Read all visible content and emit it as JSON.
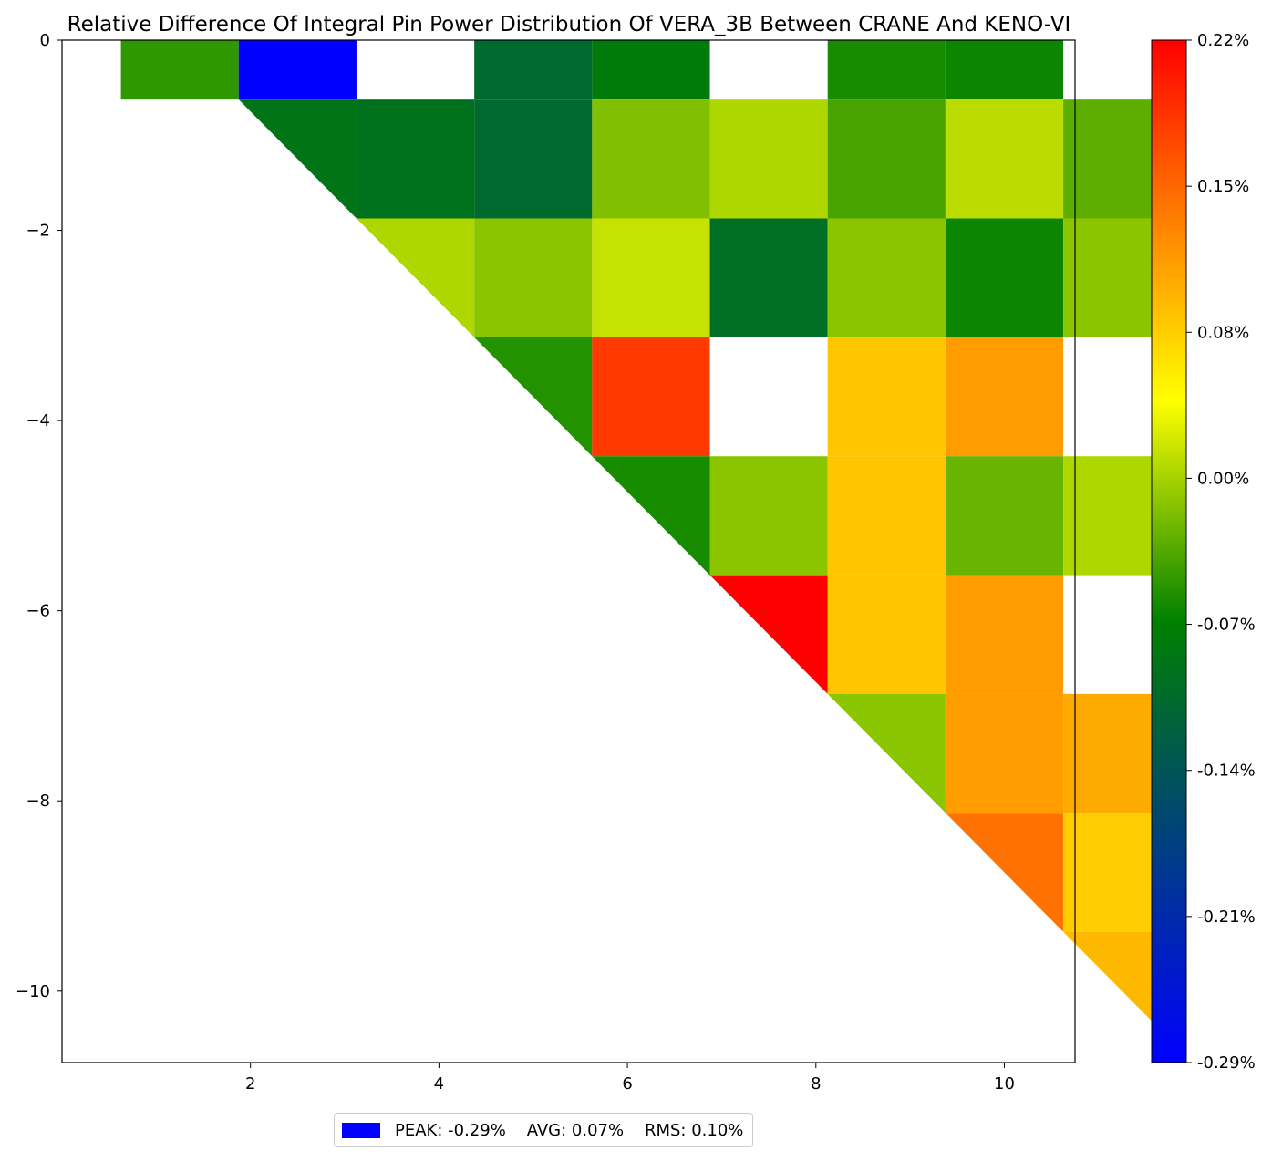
{
  "chart_data": {
    "type": "heatmap",
    "title": "Relative Difference Of Integral Pin Power Distribution Of VERA_3B Between CRANE And KENO-VI",
    "xlabel": "",
    "ylabel": "",
    "xlim": [
      0.0,
      10.75
    ],
    "ylim": [
      -10.75,
      0.0
    ],
    "x_ticks": [
      "2",
      "4",
      "6",
      "8",
      "10"
    ],
    "y_ticks": [
      "0",
      "−2",
      "−4",
      "−6",
      "−8",
      "−10"
    ],
    "grid": false,
    "units": "%",
    "colorbar": {
      "min": -0.29,
      "max": 0.22,
      "tick_labels": [
        "0.22%",
        "0.15%",
        "0.08%",
        "0.00%",
        "-0.07%",
        "-0.14%",
        "-0.21%",
        "-0.29%"
      ],
      "colors": [
        "#0000ff",
        "#008000",
        "#ffff00",
        "#ff0000"
      ]
    },
    "rows": [
      {
        "row": 0,
        "values": [
          -0.05,
          -0.29,
          null,
          -0.11,
          -0.08,
          null,
          -0.06,
          -0.065
        ]
      },
      {
        "row": 1,
        "values": [
          -0.09,
          -0.095,
          -0.11,
          -0.015,
          0.005,
          -0.04,
          0.01,
          -0.03
        ]
      },
      {
        "row": 2,
        "values": [
          0.005,
          -0.01,
          0.015,
          -0.1,
          -0.01,
          -0.065,
          -0.01
        ]
      },
      {
        "row": 3,
        "values": [
          -0.055,
          0.18,
          null,
          0.08,
          0.11
        ]
      },
      {
        "row": 4,
        "values": [
          -0.06,
          -0.01,
          0.08,
          -0.025,
          0.005
        ]
      },
      {
        "row": 5,
        "values": [
          0.22,
          0.08,
          0.11
        ]
      },
      {
        "row": 6,
        "values": [
          -0.01,
          0.11,
          0.1
        ]
      },
      {
        "row": 7,
        "values": [
          0.14,
          0.075
        ]
      },
      {
        "row": 8,
        "values": [
          0.09
        ]
      }
    ]
  },
  "legend": {
    "swatch_color": "#0000ff",
    "text": "PEAK: -0.29%    AVG: 0.07%    RMS: 0.10%"
  }
}
